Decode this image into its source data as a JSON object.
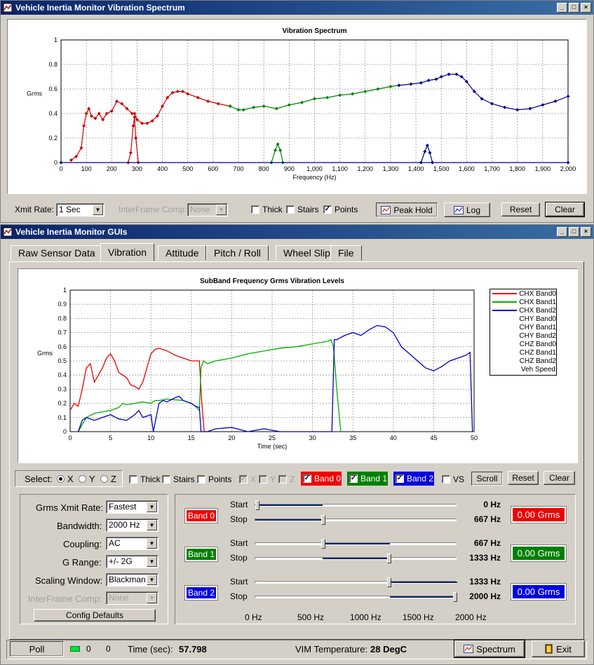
{
  "top_window": {
    "title": "Vehicle Inertia Monitor Vibration Spectrum",
    "controls": {
      "xmit_rate_label": "Xmit Rate:",
      "xmit_rate_value": "1 Sec",
      "interframe_label": "InterFrame Comp:",
      "interframe_value": "None",
      "thick_label": "Thick",
      "stairs_label": "Stairs",
      "points_label": "Points",
      "peak_hold_label": "Peak Hold",
      "log_label": "Log",
      "reset_label": "Reset",
      "clear_label": "Clear"
    }
  },
  "bottom_window": {
    "title": "Vehicle Inertia Monitor GUIs",
    "tabs": [
      "Raw Sensor Data",
      "Vibration",
      "Attitude",
      "Pitch / Roll",
      "Wheel Slip",
      "File"
    ],
    "legend": [
      "CHX Band0",
      "CHX Band1",
      "CHX Band2",
      "CHY Band0",
      "CHY Band1",
      "CHY Band2",
      "CHZ Band0",
      "CHZ Band1",
      "CHZ Band2",
      "Veh Speed"
    ],
    "select_bar": {
      "select_label": "Select:",
      "x_label": "X",
      "y_label": "Y",
      "z_label": "Z",
      "thick_label": "Thick",
      "stairs_label": "Stairs",
      "points_label": "Points",
      "gx_label": "X",
      "gy_label": "Y",
      "gz_label": "Z",
      "band0_label": "Band 0",
      "band1_label": "Band 1",
      "band2_label": "Band 2",
      "vs_label": "VS",
      "scroll_label": "Scroll",
      "reset_label": "Reset",
      "clear_label": "Clear"
    },
    "config": {
      "grms_xmit_label": "Grms Xmit Rate:",
      "grms_xmit_value": "Fastest",
      "bandwidth_label": "Bandwidth:",
      "bandwidth_value": "2000 Hz",
      "coupling_label": "Coupling:",
      "coupling_value": "AC",
      "grange_label": "G Range:",
      "grange_value": "+/- 2G",
      "scaling_label": "Scaling Window:",
      "scaling_value": "Blackman",
      "interframe_label": "InterFrame Comp:",
      "interframe_value": "None",
      "defaults_label": "Config Defaults"
    },
    "bands": {
      "start_label": "Start",
      "stop_label": "Stop",
      "items": [
        {
          "label": "Band 0",
          "start": "0 Hz",
          "stop": "667 Hz",
          "grms": "0.00 Grms",
          "color": "#ee0000",
          "start_frac": 0.0,
          "stop_frac": 0.3333
        },
        {
          "label": "Band 1",
          "start": "667 Hz",
          "stop": "1333 Hz",
          "grms": "0.00 Grms",
          "color": "#008000",
          "start_frac": 0.3333,
          "stop_frac": 0.6667
        },
        {
          "label": "Band 2",
          "start": "1333 Hz",
          "stop": "2000 Hz",
          "grms": "0.00 Grms",
          "color": "#0000e0",
          "start_frac": 0.6667,
          "stop_frac": 1.0
        }
      ],
      "scale": [
        "0 Hz",
        "500 Hz",
        "1000 Hz",
        "1500 Hz",
        "2000 Hz"
      ]
    },
    "status": {
      "poll_label": "Poll",
      "count_a": "0",
      "count_b": "0",
      "time_label": "Time (sec):",
      "time_value": "57.798",
      "temp_label": "VIM Temperature:",
      "temp_value": "28 DegC",
      "spectrum_label": "Spectrum",
      "exit_label": "Exit"
    }
  },
  "chart_data": [
    {
      "type": "line",
      "title": "Vibration Spectrum",
      "xlabel": "Frequency (Hz)",
      "ylabel": "Grms",
      "xlim": [
        0,
        2000
      ],
      "ylim": [
        0,
        1
      ],
      "xticks": [
        "0",
        "100",
        "200",
        "300",
        "400",
        "500",
        "600",
        "700",
        "800",
        "900",
        "1,000",
        "1,100",
        "1,200",
        "1,300",
        "1,400",
        "1,500",
        "1,600",
        "1,700",
        "1,800",
        "1,900",
        "2,000"
      ],
      "yticks": [
        "0",
        "0.2",
        "0.4",
        "0.6",
        "0.8",
        "1"
      ],
      "grid": true,
      "markers": true,
      "series": [
        {
          "color": "#cc0000",
          "x": [
            40,
            60,
            80,
            90,
            100,
            110,
            120,
            135,
            150,
            165,
            180,
            200,
            220,
            240,
            260,
            280,
            290,
            300,
            320,
            340,
            360,
            380,
            400,
            420,
            440,
            460,
            480,
            500,
            540,
            580,
            620,
            667
          ],
          "y": [
            0.02,
            0.05,
            0.12,
            0.3,
            0.4,
            0.44,
            0.38,
            0.36,
            0.4,
            0.35,
            0.4,
            0.42,
            0.5,
            0.48,
            0.44,
            0.4,
            0.4,
            0.35,
            0.32,
            0.32,
            0.34,
            0.38,
            0.46,
            0.53,
            0.57,
            0.58,
            0.58,
            0.56,
            0.53,
            0.5,
            0.48,
            0.46
          ]
        },
        {
          "color": "#cc0000",
          "x": [
            265,
            275,
            285,
            290,
            295,
            305
          ],
          "y": [
            0.0,
            0.08,
            0.3,
            0.37,
            0.2,
            0.0
          ]
        },
        {
          "color": "#008000",
          "x": [
            667,
            700,
            720,
            760,
            800,
            850,
            900,
            950,
            1000,
            1050,
            1100,
            1150,
            1200,
            1250,
            1300,
            1333
          ],
          "y": [
            0.46,
            0.43,
            0.43,
            0.45,
            0.46,
            0.44,
            0.47,
            0.49,
            0.52,
            0.53,
            0.55,
            0.56,
            0.58,
            0.6,
            0.62,
            0.63
          ]
        },
        {
          "color": "#008000",
          "x": [
            830,
            845,
            855,
            865,
            875
          ],
          "y": [
            0.0,
            0.1,
            0.15,
            0.1,
            0.0
          ]
        },
        {
          "color": "#000090",
          "x": [
            1333,
            1380,
            1420,
            1450,
            1480,
            1500,
            1530,
            1560,
            1580,
            1600,
            1630,
            1660,
            1700,
            1750,
            1800,
            1850,
            1900,
            1950,
            2000
          ],
          "y": [
            0.63,
            0.64,
            0.65,
            0.67,
            0.68,
            0.7,
            0.72,
            0.72,
            0.7,
            0.66,
            0.58,
            0.52,
            0.48,
            0.45,
            0.43,
            0.44,
            0.47,
            0.5,
            0.54
          ]
        },
        {
          "color": "#000090",
          "x": [
            1420,
            1435,
            1445,
            1455,
            1465
          ],
          "y": [
            0.0,
            0.09,
            0.14,
            0.08,
            0.0
          ]
        },
        {
          "color": "#000090",
          "x": [
            0,
            2000
          ],
          "y": [
            0.0,
            0.0
          ]
        }
      ]
    },
    {
      "type": "line",
      "title": "SubBand Frequency Grms Vibration Levels",
      "xlabel": "Time (sec)",
      "ylabel": "Grms",
      "xlim": [
        0,
        50
      ],
      "ylim": [
        0,
        1
      ],
      "xticks": [
        "0",
        "5",
        "10",
        "15",
        "20",
        "25",
        "30",
        "35",
        "40",
        "45",
        "50"
      ],
      "yticks": [
        "0",
        "0.1",
        "0.2",
        "0.3",
        "0.4",
        "0.5",
        "0.6",
        "0.7",
        "0.8",
        "0.9",
        "1"
      ],
      "grid": true,
      "series": [
        {
          "name": "CHX Band0",
          "color": "#ee0000",
          "x": [
            0,
            0.5,
            1,
            1.5,
            2,
            2.5,
            3,
            3.5,
            4,
            4.5,
            5,
            5.5,
            6,
            6.5,
            7,
            7.5,
            8,
            8.5,
            9,
            9.5,
            10,
            10.5,
            11,
            12,
            13,
            14,
            15,
            15.5,
            16,
            16.3,
            16.6,
            17
          ],
          "y": [
            0.15,
            0.2,
            0.18,
            0.3,
            0.45,
            0.48,
            0.35,
            0.4,
            0.45,
            0.52,
            0.55,
            0.5,
            0.42,
            0.4,
            0.38,
            0.33,
            0.32,
            0.3,
            0.35,
            0.45,
            0.55,
            0.58,
            0.59,
            0.57,
            0.54,
            0.52,
            0.5,
            0.5,
            0.5,
            0.2,
            0.0,
            0.0
          ]
        },
        {
          "name": "CHX Band1",
          "color": "#00b000",
          "x": [
            1,
            1.5,
            2,
            3,
            4,
            5,
            6,
            6.5,
            7,
            8,
            9,
            10,
            10.5,
            11,
            12,
            14,
            15,
            15.5,
            16,
            16.2,
            16.5,
            17,
            18,
            20,
            22,
            24,
            26,
            28,
            30,
            32,
            32.3,
            32.6,
            33,
            33.5
          ],
          "y": [
            0.0,
            0.05,
            0.1,
            0.13,
            0.14,
            0.15,
            0.17,
            0.2,
            0.19,
            0.2,
            0.21,
            0.2,
            0.22,
            0.22,
            0.23,
            0.22,
            0.2,
            0.18,
            0.15,
            0.45,
            0.5,
            0.48,
            0.5,
            0.52,
            0.55,
            0.57,
            0.59,
            0.6,
            0.62,
            0.64,
            0.65,
            0.6,
            0.3,
            0.0
          ]
        },
        {
          "name": "CHX Band2",
          "color": "#0000c8",
          "x": [
            1,
            1.5,
            2,
            3,
            4,
            5,
            6,
            7,
            8,
            8.5,
            9,
            10,
            10.3,
            11,
            11.5,
            12,
            13,
            13.5,
            14,
            15,
            15.5,
            16,
            16.2,
            17,
            18,
            20,
            22,
            24,
            26,
            28,
            30,
            32,
            32.4,
            32.7,
            33,
            34,
            35,
            36,
            37,
            38,
            39,
            40,
            41,
            42,
            43,
            44,
            45,
            46,
            47,
            48,
            49,
            49.5,
            49.8
          ],
          "y": [
            0.0,
            0.08,
            0.1,
            0.08,
            0.1,
            0.12,
            0.09,
            0.08,
            0.12,
            0.15,
            0.1,
            0.12,
            0.0,
            0.2,
            0.22,
            0.21,
            0.24,
            0.25,
            0.22,
            0.2,
            0.18,
            0.17,
            0.0,
            0.0,
            0.02,
            0.03,
            0.0,
            0.02,
            0.0,
            0.0,
            0.0,
            0.0,
            0.0,
            0.65,
            0.65,
            0.68,
            0.7,
            0.68,
            0.72,
            0.75,
            0.74,
            0.7,
            0.6,
            0.55,
            0.5,
            0.45,
            0.43,
            0.46,
            0.5,
            0.52,
            0.54,
            0.56,
            0.0
          ]
        }
      ]
    }
  ]
}
